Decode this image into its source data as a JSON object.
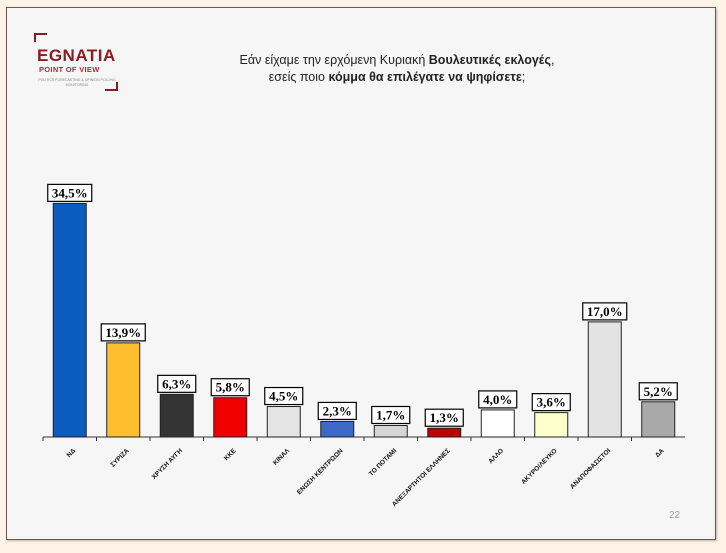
{
  "logo": {
    "brand": "EGNATIA",
    "subtitle": "POINT OF VIEW",
    "tagline": "POLITICS FORECASTING & OPINION POLLING MONITORING"
  },
  "title": {
    "line1_pre": "Εάν είχαμε την ερχόμενη Κυριακή ",
    "line1_bold": "Βουλευτικές εκλογές",
    "line1_post": ",",
    "line2_pre": "εσείς ποιο ",
    "line2_bold": "κόμμα θα επιλέγατε να ψηφίσετε",
    "line2_post": ";"
  },
  "page_number": "22",
  "chart_data": {
    "type": "bar",
    "categories": [
      "ΝΔ",
      "ΣΥΡΙΖΑ",
      "ΧΡΥΣΗ ΑΥΓΗ",
      "ΚΚΕ",
      "ΚΙΝΑΛ",
      "ΕΝΩΣΗ ΚΕΝΤΡΩΩΝ",
      "ΤΟ ΠΟΤΑΜΙ",
      "ΑΝΕΞΑΡΤΗΤΟΙ ΕΛΛΗΝΕΣ",
      "ΑΛΛΟ",
      "ΑΚΥΡΟ/ΛΕΥΚΟ",
      "ΑΝΑΠΟΦΑΣΙΣΤΟΙ",
      "ΔΑ"
    ],
    "values": [
      34.5,
      13.9,
      6.3,
      5.8,
      4.5,
      2.3,
      1.7,
      1.3,
      4.0,
      3.6,
      17.0,
      5.2
    ],
    "data_labels": [
      "34,5%",
      "13,9%",
      "6,3%",
      "5,8%",
      "4,5%",
      "2,3%",
      "1,7%",
      "1,3%",
      "4,0%",
      "3,6%",
      "17,0%",
      "5,2%"
    ],
    "colors": [
      "#0b5cbe",
      "#fdbf2d",
      "#333333",
      "#f00000",
      "#e4e4e4",
      "#3d69c6",
      "#d6d6d6",
      "#c00000",
      "#ffffff",
      "#ffffcc",
      "#e3e3e3",
      "#a9a9a9"
    ],
    "title": "",
    "xlabel": "",
    "ylabel": "",
    "ylim": [
      0,
      35
    ],
    "grid": false,
    "legend": "none"
  }
}
